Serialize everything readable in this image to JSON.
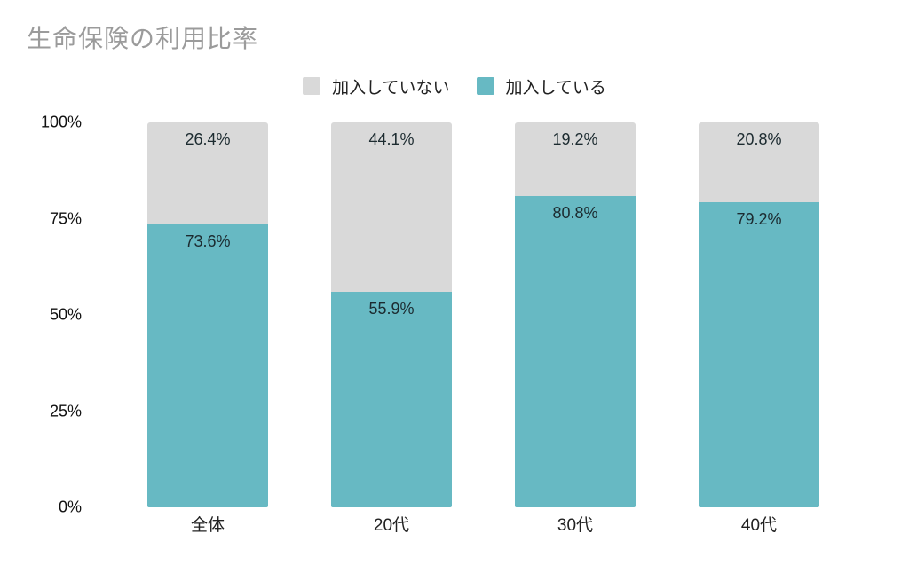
{
  "title": "生命保険の利用比率",
  "legend": {
    "items": [
      {
        "label": "加入していない",
        "color": "#d9d9d9"
      },
      {
        "label": "加入している",
        "color": "#67b9c3"
      }
    ]
  },
  "chart_data": {
    "type": "bar",
    "stacked": true,
    "title": "生命保険の利用比率",
    "categories": [
      "全体",
      "20代",
      "30代",
      "40代"
    ],
    "series": [
      {
        "name": "加入している",
        "color": "#67b9c3",
        "stack_position": "bottom",
        "values": [
          73.6,
          55.9,
          80.8,
          79.2
        ]
      },
      {
        "name": "加入していない",
        "color": "#d9d9d9",
        "stack_position": "top",
        "values": [
          26.4,
          44.1,
          19.2,
          20.8
        ]
      }
    ],
    "value_suffix": "%",
    "xlabel": "",
    "ylabel": "",
    "ylim": [
      0,
      100
    ],
    "yticks": [
      {
        "label": "0%",
        "value": 0
      },
      {
        "label": "25%",
        "value": 25
      },
      {
        "label": "50%",
        "value": 50
      },
      {
        "label": "75%",
        "value": 75
      },
      {
        "label": "100%",
        "value": 100
      }
    ],
    "grid": false,
    "legend_position": "top-center",
    "data_label_color": "#1c2b30"
  },
  "colors": {
    "background": "#ffffff",
    "title_text": "#9b9b9b",
    "axis_text": "#111111",
    "enrolled": "#67b9c3",
    "not_enrolled": "#d9d9d9"
  }
}
